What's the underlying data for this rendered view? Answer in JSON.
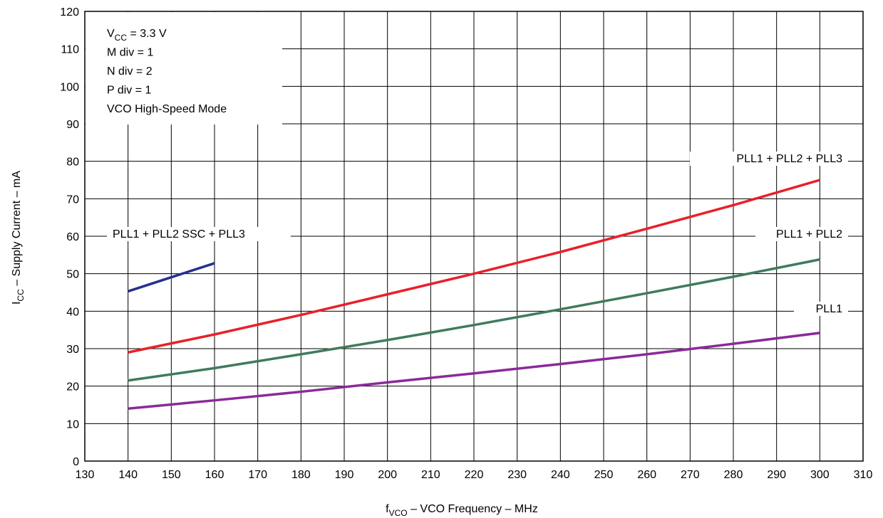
{
  "chart_data": {
    "type": "line",
    "xlabel": {
      "main": "f",
      "sub": "VCO",
      "rest": " – VCO Frequency – MHz"
    },
    "ylabel": {
      "main": "I",
      "sub": "CC",
      "rest": " – Supply Current – mA"
    },
    "xlim": [
      130,
      310
    ],
    "ylim": [
      0,
      120
    ],
    "xticks": [
      "130",
      "140",
      "150",
      "160",
      "170",
      "180",
      "190",
      "200",
      "210",
      "220",
      "230",
      "240",
      "250",
      "260",
      "270",
      "280",
      "290",
      "300",
      "310"
    ],
    "yticks": [
      "0",
      "10",
      "20",
      "30",
      "40",
      "50",
      "60",
      "70",
      "80",
      "90",
      "100",
      "110",
      "120"
    ],
    "grid": true,
    "conditions": [
      {
        "main": "V",
        "sub": "CC",
        "rest": " = 3.3 V"
      },
      {
        "main": "M div = 1",
        "sub": "",
        "rest": ""
      },
      {
        "main": "N div = 2",
        "sub": "",
        "rest": ""
      },
      {
        "main": "P div = 1",
        "sub": "",
        "rest": ""
      },
      {
        "main": "VCO High-Speed Mode",
        "sub": "",
        "rest": ""
      }
    ],
    "series": [
      {
        "name": "PLL1 + PLL2 + PLL3",
        "color": "#e8202a",
        "x": [
          140,
          160,
          180,
          200,
          220,
          240,
          260,
          280,
          300
        ],
        "y": [
          29,
          33.8,
          39,
          44.5,
          50,
          55.8,
          62,
          68.3,
          75
        ]
      },
      {
        "name": "PLL1 + PLL2",
        "color": "#3f7b5e",
        "x": [
          140,
          160,
          180,
          200,
          220,
          240,
          260,
          280,
          300
        ],
        "y": [
          21.5,
          24.8,
          28.5,
          32.3,
          36.3,
          40.5,
          44.8,
          49.2,
          53.8
        ]
      },
      {
        "name": "PLL1",
        "color": "#8a2a9a",
        "x": [
          140,
          160,
          180,
          200,
          220,
          240,
          260,
          280,
          300
        ],
        "y": [
          14,
          16.2,
          18.5,
          21,
          23.4,
          25.9,
          28.5,
          31.3,
          34.2
        ]
      },
      {
        "name": "PLL1 + PLL2 SSC + PLL3",
        "color": "#24318e",
        "x": [
          140,
          160
        ],
        "y": [
          45.3,
          52.8
        ]
      }
    ]
  }
}
